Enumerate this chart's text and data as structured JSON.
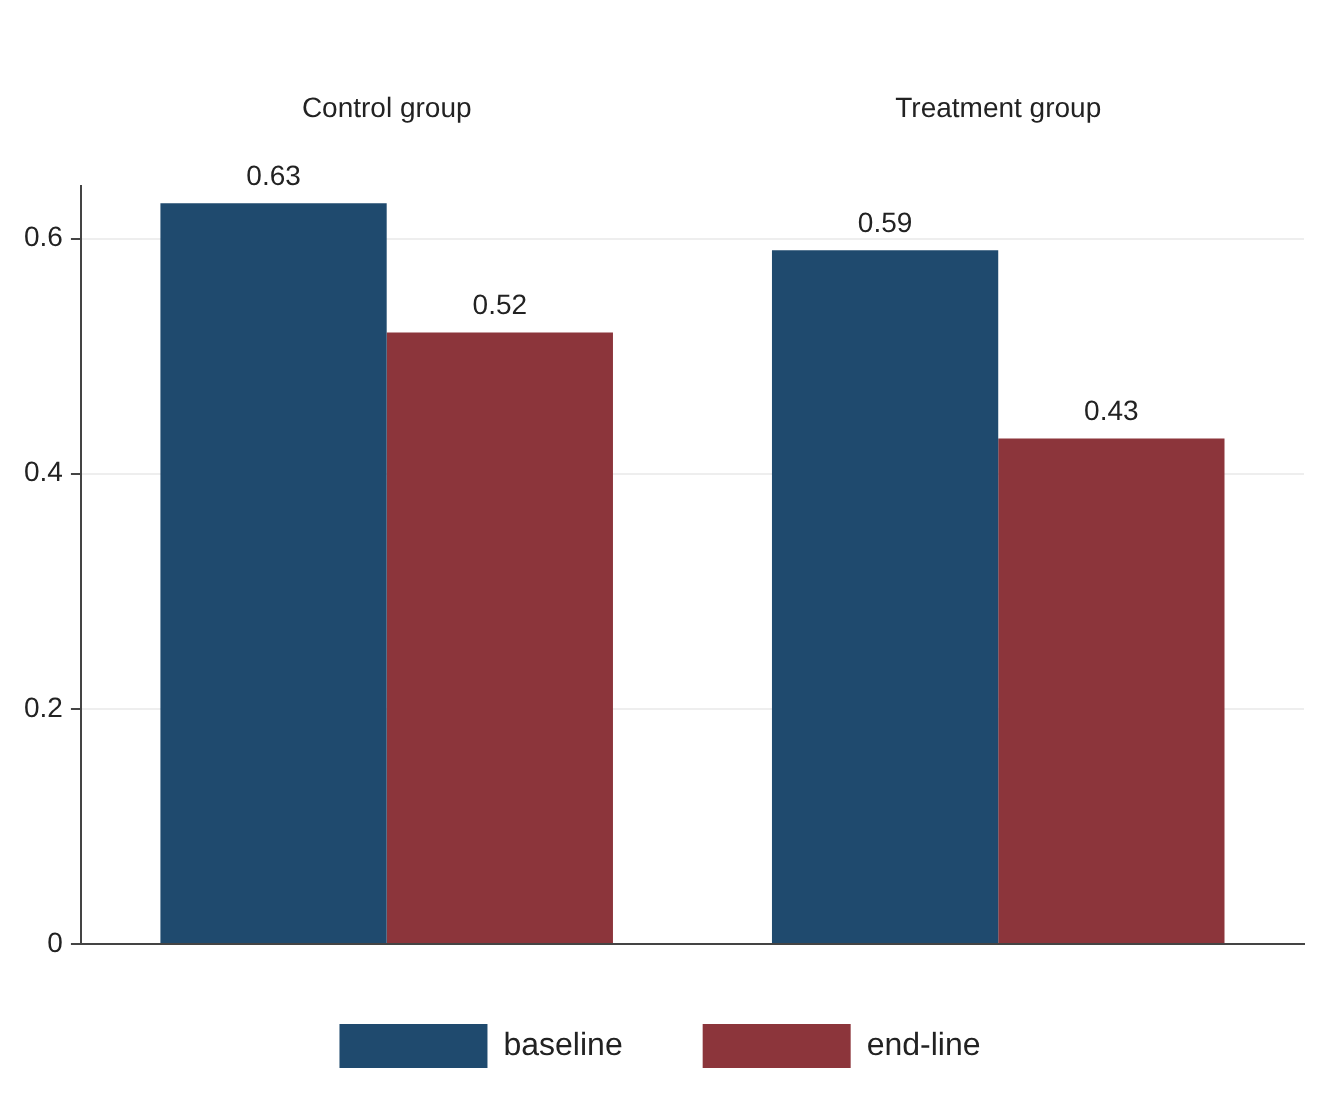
{
  "chart_data": {
    "type": "bar",
    "categories": [
      "Control group",
      "Treatment group"
    ],
    "series": [
      {
        "name": "baseline",
        "color": "#1f4a6e",
        "values": [
          0.63,
          0.59
        ]
      },
      {
        "name": "end-line",
        "color": "#8c353b",
        "values": [
          0.52,
          0.43
        ]
      }
    ],
    "ylim": [
      0,
      0.645
    ],
    "yticks": [
      0,
      0.2,
      0.4,
      0.6
    ],
    "grid": "y",
    "data_labels": true,
    "legend": "bottom"
  }
}
